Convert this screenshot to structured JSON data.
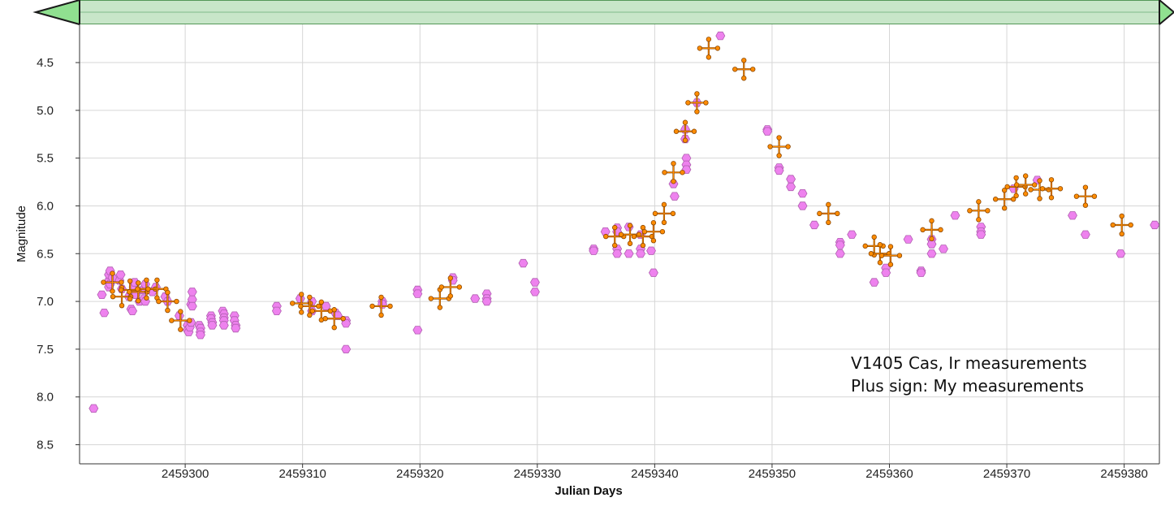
{
  "scroll_bar": {
    "fill_color": "#c8e6c9",
    "border_color": "#2e7d32",
    "left_arrow": "triangle-left-icon",
    "right_arrow": "triangle-right-icon"
  },
  "chart_data": {
    "type": "scatter",
    "xlabel": "Julian Days",
    "ylabel": "Magnitude",
    "xlim": [
      2459291,
      2459383
    ],
    "ylim": [
      8.7,
      4.1
    ],
    "y_inverted": true,
    "grid": true,
    "x_ticks": [
      2459300,
      2459310,
      2459320,
      2459330,
      2459340,
      2459350,
      2459360,
      2459370,
      2459380
    ],
    "y_ticks": [
      4.5,
      5.0,
      5.5,
      6.0,
      6.5,
      7.0,
      7.5,
      8.0,
      8.5
    ],
    "x_tick_labels": [
      "2459300",
      "2459310",
      "2459320",
      "2459330",
      "2459340",
      "2459350",
      "2459360",
      "2459370",
      "2459380"
    ],
    "y_tick_labels": [
      "4.5",
      "5.0",
      "5.5",
      "6.0",
      "6.5",
      "7.0",
      "7.5",
      "8.0",
      "8.5"
    ],
    "annotations": [
      "V1405 Cas, Ir measurements",
      "Plus sign: My measurements"
    ],
    "series": [
      {
        "marker": "hexagon",
        "color": "#ee82ee",
        "edge_color": "#b05fb0",
        "points": [
          [
            2459292.2,
            8.12
          ],
          [
            2459292.9,
            6.93
          ],
          [
            2459293.1,
            7.12
          ],
          [
            2459293.5,
            6.85
          ],
          [
            2459293.5,
            6.78
          ],
          [
            2459293.5,
            6.72
          ],
          [
            2459293.6,
            6.68
          ],
          [
            2459293.6,
            6.82
          ],
          [
            2459293.8,
            6.75
          ],
          [
            2459294.4,
            6.78
          ],
          [
            2459294.5,
            6.72
          ],
          [
            2459294.6,
            6.87
          ],
          [
            2459295.2,
            6.95
          ],
          [
            2459295.4,
            7.08
          ],
          [
            2459295.5,
            7.1
          ],
          [
            2459295.6,
            6.85
          ],
          [
            2459295.7,
            6.8
          ],
          [
            2459295.8,
            6.93
          ],
          [
            2459296.1,
            7.0
          ],
          [
            2459296.4,
            6.88
          ],
          [
            2459296.5,
            6.97
          ],
          [
            2459296.6,
            7.0
          ],
          [
            2459296.6,
            6.82
          ],
          [
            2459297.2,
            6.9
          ],
          [
            2459297.5,
            6.85
          ],
          [
            2459298.3,
            6.95
          ],
          [
            2459298.5,
            7.0
          ],
          [
            2459299.5,
            7.15
          ],
          [
            2459300.2,
            7.25
          ],
          [
            2459300.2,
            7.3
          ],
          [
            2459300.3,
            7.32
          ],
          [
            2459300.4,
            7.27
          ],
          [
            2459300.5,
            7.22
          ],
          [
            2459300.5,
            7.03
          ],
          [
            2459300.6,
            6.98
          ],
          [
            2459300.6,
            7.05
          ],
          [
            2459300.6,
            6.9
          ],
          [
            2459301.2,
            7.25
          ],
          [
            2459301.3,
            7.28
          ],
          [
            2459301.3,
            7.32
          ],
          [
            2459301.3,
            7.35
          ],
          [
            2459302.2,
            7.15
          ],
          [
            2459302.2,
            7.18
          ],
          [
            2459302.3,
            7.22
          ],
          [
            2459302.3,
            7.25
          ],
          [
            2459303.2,
            7.1
          ],
          [
            2459303.3,
            7.13
          ],
          [
            2459303.3,
            7.17
          ],
          [
            2459303.3,
            7.2
          ],
          [
            2459303.3,
            7.25
          ],
          [
            2459304.2,
            7.15
          ],
          [
            2459304.2,
            7.2
          ],
          [
            2459304.3,
            7.25
          ],
          [
            2459304.3,
            7.28
          ],
          [
            2459307.8,
            7.05
          ],
          [
            2459307.8,
            7.1
          ],
          [
            2459309.8,
            6.97
          ],
          [
            2459310.8,
            7.0
          ],
          [
            2459310.8,
            7.1
          ],
          [
            2459312.0,
            7.05
          ],
          [
            2459312.8,
            7.12
          ],
          [
            2459313.0,
            7.15
          ],
          [
            2459313.7,
            7.2
          ],
          [
            2459313.7,
            7.23
          ],
          [
            2459313.7,
            7.5
          ],
          [
            2459316.8,
            7.0
          ],
          [
            2459316.8,
            7.03
          ],
          [
            2459319.8,
            6.88
          ],
          [
            2459319.8,
            6.92
          ],
          [
            2459319.8,
            7.3
          ],
          [
            2459322.8,
            6.75
          ],
          [
            2459322.8,
            6.78
          ],
          [
            2459324.7,
            6.97
          ],
          [
            2459325.7,
            6.92
          ],
          [
            2459325.7,
            6.97
          ],
          [
            2459325.7,
            7.0
          ],
          [
            2459328.8,
            6.6
          ],
          [
            2459329.8,
            6.8
          ],
          [
            2459329.8,
            6.9
          ],
          [
            2459334.8,
            6.45
          ],
          [
            2459334.8,
            6.47
          ],
          [
            2459335.8,
            6.27
          ],
          [
            2459336.8,
            6.23
          ],
          [
            2459336.8,
            6.27
          ],
          [
            2459336.8,
            6.45
          ],
          [
            2459336.8,
            6.5
          ],
          [
            2459337.8,
            6.22
          ],
          [
            2459337.8,
            6.5
          ],
          [
            2459338.8,
            6.3
          ],
          [
            2459338.8,
            6.45
          ],
          [
            2459338.8,
            6.5
          ],
          [
            2459339.7,
            6.47
          ],
          [
            2459339.9,
            6.7
          ],
          [
            2459341.6,
            5.77
          ],
          [
            2459341.7,
            5.9
          ],
          [
            2459342.6,
            5.2
          ],
          [
            2459342.6,
            5.3
          ],
          [
            2459342.7,
            5.5
          ],
          [
            2459342.7,
            5.57
          ],
          [
            2459342.7,
            5.62
          ],
          [
            2459343.6,
            4.92
          ],
          [
            2459345.6,
            4.22
          ],
          [
            2459349.6,
            5.2
          ],
          [
            2459349.6,
            5.22
          ],
          [
            2459350.6,
            5.6
          ],
          [
            2459350.6,
            5.63
          ],
          [
            2459351.6,
            5.72
          ],
          [
            2459351.6,
            5.8
          ],
          [
            2459352.6,
            5.87
          ],
          [
            2459352.6,
            6.0
          ],
          [
            2459353.6,
            6.2
          ],
          [
            2459355.8,
            6.38
          ],
          [
            2459355.8,
            6.41
          ],
          [
            2459355.8,
            6.5
          ],
          [
            2459356.8,
            6.3
          ],
          [
            2459358.7,
            6.8
          ],
          [
            2459359.7,
            6.65
          ],
          [
            2459359.7,
            6.7
          ],
          [
            2459361.6,
            6.35
          ],
          [
            2459362.7,
            6.68
          ],
          [
            2459362.7,
            6.7
          ],
          [
            2459363.6,
            6.35
          ],
          [
            2459363.6,
            6.4
          ],
          [
            2459363.6,
            6.5
          ],
          [
            2459364.6,
            6.45
          ],
          [
            2459365.6,
            6.1
          ],
          [
            2459367.8,
            6.22
          ],
          [
            2459367.8,
            6.27
          ],
          [
            2459367.8,
            6.3
          ],
          [
            2459370.6,
            5.82
          ],
          [
            2459372.6,
            5.73
          ],
          [
            2459375.6,
            6.1
          ],
          [
            2459376.7,
            6.3
          ],
          [
            2459379.7,
            6.5
          ],
          [
            2459382.6,
            6.2
          ]
        ]
      },
      {
        "name": "Plus sign: My measurements",
        "marker": "plus",
        "color": "#ff8c00",
        "edge_color": "#8a4600",
        "points": [
          [
            2459293.8,
            6.8
          ],
          [
            2459294.6,
            6.95
          ],
          [
            2459295.3,
            6.88
          ],
          [
            2459296.0,
            6.9
          ],
          [
            2459296.7,
            6.87
          ],
          [
            2459297.6,
            6.87
          ],
          [
            2459298.5,
            7.0
          ],
          [
            2459299.6,
            7.2
          ],
          [
            2459309.9,
            7.02
          ],
          [
            2459310.6,
            7.05
          ],
          [
            2459311.6,
            7.1
          ],
          [
            2459312.7,
            7.18
          ],
          [
            2459316.7,
            7.05
          ],
          [
            2459321.7,
            6.97
          ],
          [
            2459322.6,
            6.85
          ],
          [
            2459336.6,
            6.32
          ],
          [
            2459337.9,
            6.3
          ],
          [
            2459339.0,
            6.32
          ],
          [
            2459339.9,
            6.27
          ],
          [
            2459340.8,
            6.08
          ],
          [
            2459341.6,
            5.65
          ],
          [
            2459342.6,
            5.22
          ],
          [
            2459343.6,
            4.92
          ],
          [
            2459344.6,
            4.35
          ],
          [
            2459347.6,
            4.57
          ],
          [
            2459350.6,
            5.38
          ],
          [
            2459354.8,
            6.08
          ],
          [
            2459358.7,
            6.42
          ],
          [
            2459359.2,
            6.5
          ],
          [
            2459360.1,
            6.52
          ],
          [
            2459363.6,
            6.25
          ],
          [
            2459367.6,
            6.05
          ],
          [
            2459369.8,
            5.93
          ],
          [
            2459370.8,
            5.8
          ],
          [
            2459371.6,
            5.78
          ],
          [
            2459372.8,
            5.83
          ],
          [
            2459373.8,
            5.82
          ],
          [
            2459376.7,
            5.9
          ],
          [
            2459379.8,
            6.2
          ]
        ]
      }
    ]
  }
}
